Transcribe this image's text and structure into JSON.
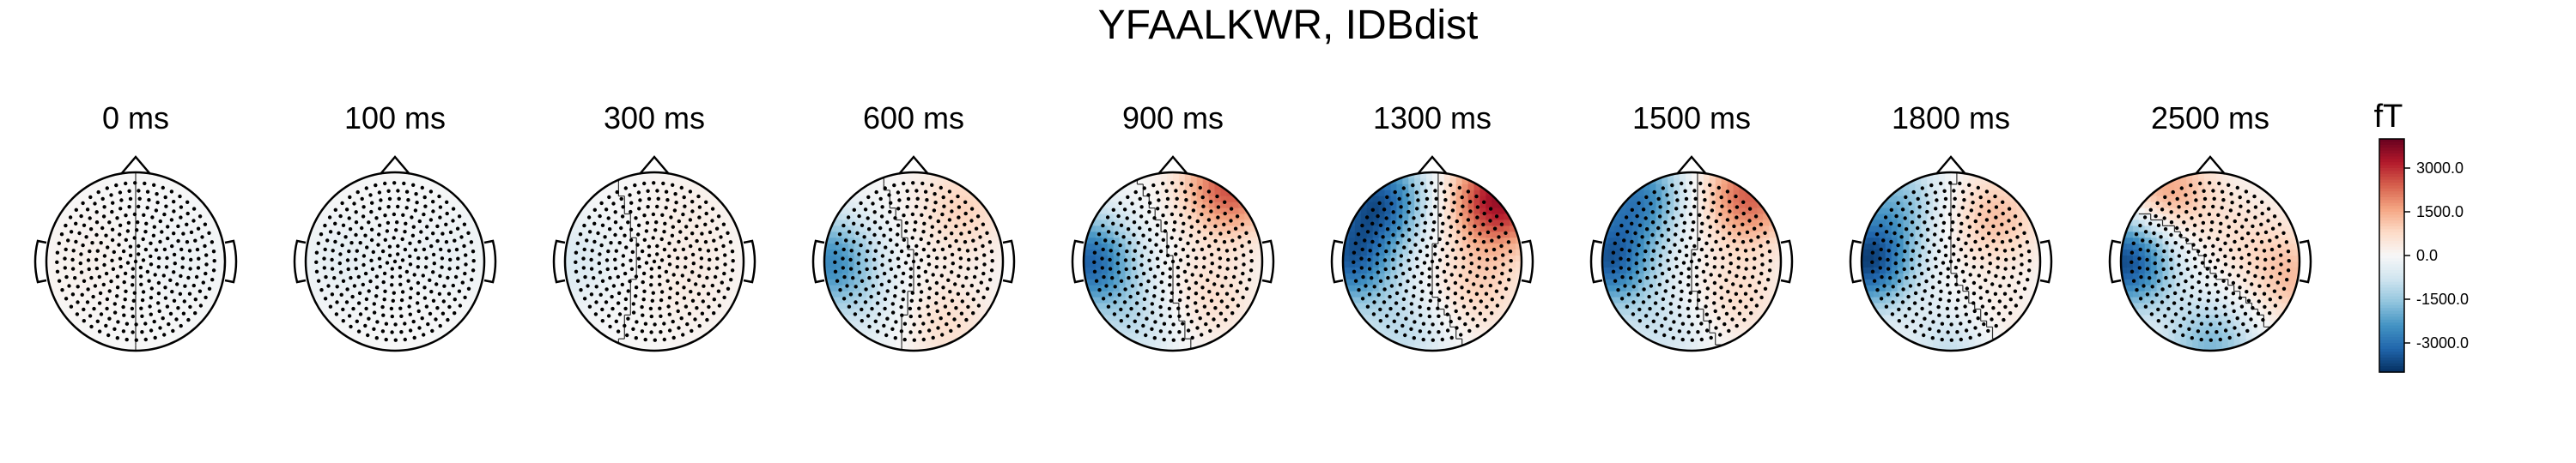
{
  "chart_data": {
    "type": "heatmap",
    "title": "YFAALKWR, IDBdist",
    "panels": [
      {
        "label": "0 ms",
        "time_ms": 0,
        "sources": [
          [
            -0.5,
            0.0,
            200
          ],
          [
            0.5,
            0.0,
            -200
          ]
        ]
      },
      {
        "label": "100 ms",
        "time_ms": 100,
        "sources": [
          [
            -0.6,
            0.0,
            -350
          ],
          [
            0.6,
            0.1,
            -250
          ]
        ]
      },
      {
        "label": "300 ms",
        "time_ms": 300,
        "sources": [
          [
            -0.95,
            0.0,
            -600
          ],
          [
            0.4,
            -0.3,
            300
          ],
          [
            0.4,
            0.5,
            250
          ]
        ]
      },
      {
        "label": "600 ms",
        "time_ms": 600,
        "sources": [
          [
            -0.95,
            0.0,
            -2500
          ],
          [
            0.55,
            0.6,
            900
          ],
          [
            0.35,
            -0.7,
            700
          ],
          [
            -0.5,
            -0.6,
            -500
          ]
        ]
      },
      {
        "label": "900 ms",
        "time_ms": 900,
        "sources": [
          [
            -0.95,
            0.0,
            -3200
          ],
          [
            0.65,
            0.85,
            2600
          ],
          [
            0.4,
            -0.4,
            700
          ],
          [
            -0.4,
            -0.7,
            -900
          ]
        ]
      },
      {
        "label": "1300 ms",
        "time_ms": 1300,
        "sources": [
          [
            -0.95,
            0.0,
            -3000
          ],
          [
            -0.6,
            0.7,
            -3200
          ],
          [
            0.75,
            0.7,
            3500
          ],
          [
            0.5,
            -0.3,
            900
          ],
          [
            -0.3,
            -0.8,
            -1000
          ]
        ]
      },
      {
        "label": "1500 ms",
        "time_ms": 1500,
        "sources": [
          [
            -0.95,
            0.0,
            -3200
          ],
          [
            -0.6,
            0.75,
            -2600
          ],
          [
            0.65,
            0.75,
            2400
          ],
          [
            0.5,
            -0.4,
            700
          ],
          [
            -0.3,
            -0.8,
            -800
          ]
        ]
      },
      {
        "label": "1800 ms",
        "time_ms": 1800,
        "sources": [
          [
            -0.95,
            0.0,
            -3600
          ],
          [
            -0.6,
            0.7,
            -1500
          ],
          [
            0.5,
            0.5,
            1200
          ],
          [
            0.35,
            -0.8,
            900
          ],
          [
            0.1,
            -0.95,
            -1500
          ]
        ]
      },
      {
        "label": "2500 ms",
        "time_ms": 2500,
        "sources": [
          [
            -0.95,
            0.0,
            -3600
          ],
          [
            -0.5,
            0.8,
            1600
          ],
          [
            0.0,
            -0.95,
            -1800
          ],
          [
            0.95,
            -0.2,
            1200
          ],
          [
            0.4,
            0.3,
            500
          ]
        ]
      }
    ],
    "colorbar": {
      "label": "fT",
      "min": -4000,
      "max": 4000,
      "ticks": [
        3000,
        1500,
        0,
        -1500,
        -3000
      ],
      "tick_labels": [
        "3000.0",
        "1500.0",
        "0.0",
        "-1500.0",
        "-3000.0"
      ],
      "colormap": [
        "#053061",
        "#2166ac",
        "#4393c3",
        "#92c5de",
        "#d1e5f0",
        "#f7f7f7",
        "#fddbc7",
        "#f4a582",
        "#d6604d",
        "#b2182b",
        "#67001f"
      ]
    },
    "sensor_grid": "dense",
    "contour_line": "zero"
  }
}
